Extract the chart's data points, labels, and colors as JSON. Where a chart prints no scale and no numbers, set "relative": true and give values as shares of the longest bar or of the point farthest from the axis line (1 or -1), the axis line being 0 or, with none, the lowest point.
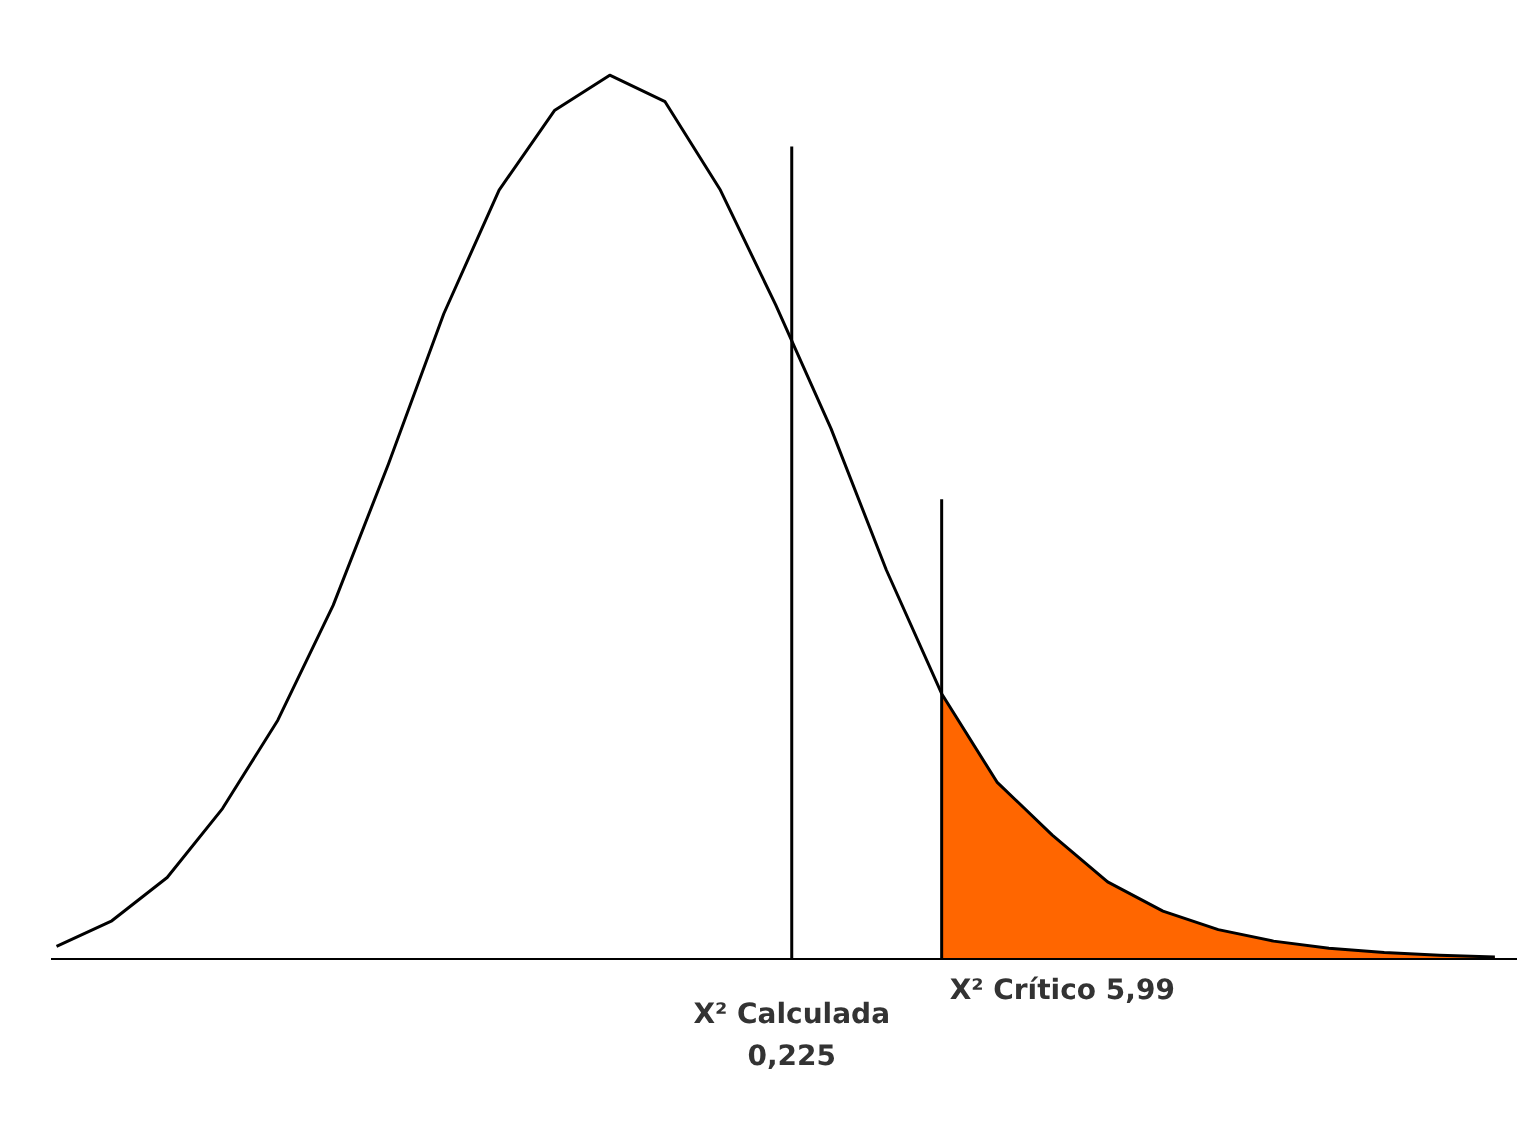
{
  "chart_data": {
    "type": "line",
    "relative": true,
    "grid": false,
    "categories": [
      null,
      null,
      null,
      null,
      null,
      null,
      null,
      null,
      null,
      null,
      null,
      null,
      null,
      null,
      null,
      null,
      null,
      null,
      null,
      null,
      null,
      null,
      null,
      null,
      null,
      null,
      null
    ],
    "series": [
      {
        "color": "#000000",
        "values": [
          0.014,
          0.043,
          0.092,
          0.17,
          0.27,
          0.4,
          0.56,
          0.73,
          0.87,
          0.96,
          1.0,
          0.97,
          0.87,
          0.74,
          0.6,
          0.44,
          0.3,
          0.2,
          0.14,
          0.087,
          0.054,
          0.033,
          0.02,
          0.012,
          0.007,
          0.004,
          0.002
        ]
      },
      {
        "type": "area",
        "color": "#ff6600",
        "values": [
          null,
          null,
          null,
          null,
          null,
          null,
          null,
          null,
          null,
          null,
          null,
          null,
          null,
          null,
          null,
          null,
          0.3,
          0.2,
          0.14,
          0.087,
          0.054,
          0.033,
          0.02,
          0.012,
          0.007,
          0.004,
          0.002
        ]
      }
    ],
    "annotations": [
      "X² Calculada\n0,225",
      "X² Crítico 5,99"
    ]
  }
}
